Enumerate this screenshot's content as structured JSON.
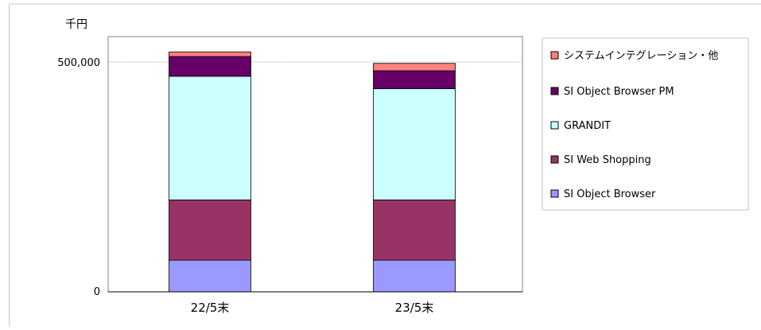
{
  "chart_data": {
    "type": "bar",
    "stacked": true,
    "unit_label": "千円",
    "title": "",
    "xlabel": "",
    "ylabel": "",
    "categories": [
      "22/5末",
      "23/5末"
    ],
    "series": [
      {
        "name": "SI Object Browser",
        "values": [
          69000,
          69000
        ],
        "color": "#9999ff"
      },
      {
        "name": "SI Web Shopping",
        "values": [
          131000,
          131000
        ],
        "color": "#993366"
      },
      {
        "name": "GRANDIT",
        "values": [
          269000,
          242000
        ],
        "color": "#ccffff"
      },
      {
        "name": "SI Object Browser PM",
        "values": [
          43000,
          39000
        ],
        "color": "#660066"
      },
      {
        "name": "システムインテグレーション・他",
        "values": [
          10000,
          16000
        ],
        "color": "#ff8080"
      }
    ],
    "yticks": [
      0,
      500000
    ],
    "ytick_labels": [
      "0",
      "500,000"
    ],
    "ylim": [
      0,
      500000
    ],
    "grid": true,
    "legend_position": "right",
    "legend_order": [
      "システムインテグレーション・他",
      "SI Object Browser PM",
      "GRANDIT",
      "SI Web Shopping",
      "SI Object Browser"
    ]
  }
}
